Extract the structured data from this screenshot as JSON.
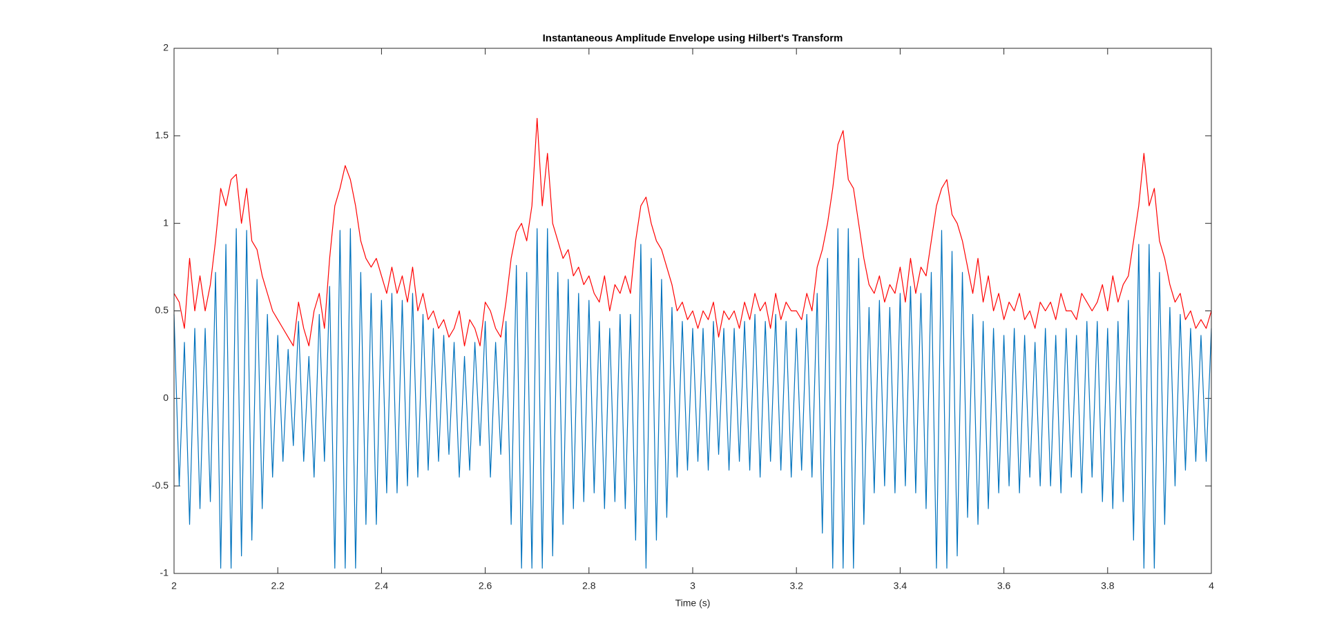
{
  "chart_data": {
    "type": "line",
    "title": "Instantaneous Amplitude Envelope using Hilbert's Transform",
    "x_label": "Time (s)",
    "x": [
      2,
      2.01,
      2.02,
      2.03,
      2.04,
      2.05,
      2.06,
      2.07,
      2.08,
      2.09,
      2.1,
      2.11,
      2.12,
      2.13,
      2.14,
      2.15,
      2.16,
      2.17,
      2.18,
      2.19,
      2.2,
      2.21,
      2.22,
      2.23,
      2.24,
      2.25,
      2.26,
      2.27,
      2.28,
      2.29,
      2.3,
      2.31,
      2.32,
      2.33,
      2.34,
      2.35,
      2.36,
      2.37,
      2.38,
      2.39,
      2.4,
      2.41,
      2.42,
      2.43,
      2.44,
      2.45,
      2.46,
      2.47,
      2.48,
      2.49,
      2.5,
      2.51,
      2.52,
      2.53,
      2.54,
      2.55,
      2.56,
      2.57,
      2.58,
      2.59,
      2.6,
      2.61,
      2.62,
      2.63,
      2.64,
      2.65,
      2.66,
      2.67,
      2.68,
      2.69,
      2.7,
      2.71,
      2.72,
      2.73,
      2.74,
      2.75,
      2.76,
      2.77,
      2.78,
      2.79,
      2.8,
      2.81,
      2.82,
      2.83,
      2.84,
      2.85,
      2.86,
      2.87,
      2.88,
      2.89,
      2.9,
      2.91,
      2.92,
      2.93,
      2.94,
      2.95,
      2.96,
      2.97,
      2.98,
      2.99,
      3,
      3.01,
      3.02,
      3.03,
      3.04,
      3.05,
      3.06,
      3.07,
      3.08,
      3.09,
      3.1,
      3.11,
      3.12,
      3.13,
      3.14,
      3.15,
      3.16,
      3.17,
      3.18,
      3.19,
      3.2,
      3.21,
      3.22,
      3.23,
      3.24,
      3.25,
      3.26,
      3.27,
      3.28,
      3.29,
      3.3,
      3.31,
      3.32,
      3.33,
      3.34,
      3.35,
      3.36,
      3.37,
      3.38,
      3.39,
      3.4,
      3.41,
      3.42,
      3.43,
      3.44,
      3.45,
      3.46,
      3.47,
      3.48,
      3.49,
      3.5,
      3.51,
      3.52,
      3.53,
      3.54,
      3.55,
      3.56,
      3.57,
      3.58,
      3.59,
      3.6,
      3.61,
      3.62,
      3.63,
      3.64,
      3.65,
      3.66,
      3.67,
      3.68,
      3.69,
      3.7,
      3.71,
      3.72,
      3.73,
      3.74,
      3.75,
      3.76,
      3.77,
      3.78,
      3.79,
      3.8,
      3.81,
      3.82,
      3.83,
      3.84,
      3.85,
      3.86,
      3.87,
      3.88,
      3.89,
      3.9,
      3.91,
      3.92,
      3.93,
      3.94,
      3.95,
      3.96,
      3.97,
      3.98,
      3.99,
      4
    ],
    "series": [
      {
        "color": "#0072BD",
        "values": [
          0.48,
          -0.5,
          0.32,
          -0.72,
          0.4,
          -0.63,
          0.4,
          -0.59,
          0.72,
          -0.97,
          0.88,
          -0.97,
          0.97,
          -0.9,
          0.96,
          -0.81,
          0.68,
          -0.63,
          0.48,
          -0.45,
          0.36,
          -0.36,
          0.28,
          -0.27,
          0.44,
          -0.36,
          0.24,
          -0.45,
          0.48,
          -0.36,
          0.64,
          -0.97,
          0.96,
          -0.97,
          0.97,
          -0.97,
          0.72,
          -0.72,
          0.6,
          -0.72,
          0.56,
          -0.54,
          0.6,
          -0.54,
          0.56,
          -0.5,
          0.6,
          -0.45,
          0.48,
          -0.41,
          0.4,
          -0.36,
          0.36,
          -0.32,
          0.32,
          -0.45,
          0.24,
          -0.41,
          0.32,
          -0.27,
          0.44,
          -0.45,
          0.32,
          -0.32,
          0.44,
          -0.72,
          0.76,
          -0.97,
          0.72,
          -0.97,
          0.97,
          -0.97,
          0.97,
          -0.9,
          0.72,
          -0.72,
          0.68,
          -0.63,
          0.6,
          -0.59,
          0.56,
          -0.54,
          0.44,
          -0.63,
          0.4,
          -0.59,
          0.48,
          -0.63,
          0.48,
          -0.81,
          0.88,
          -0.97,
          0.8,
          -0.81,
          0.68,
          -0.68,
          0.52,
          -0.45,
          0.44,
          -0.41,
          0.4,
          -0.36,
          0.4,
          -0.41,
          0.44,
          -0.32,
          0.4,
          -0.41,
          0.4,
          -0.36,
          0.44,
          -0.41,
          0.48,
          -0.45,
          0.44,
          -0.36,
          0.48,
          -0.41,
          0.44,
          -0.45,
          0.4,
          -0.41,
          0.48,
          -0.45,
          0.6,
          -0.77,
          0.8,
          -0.97,
          0.97,
          -0.97,
          0.97,
          -0.97,
          0.8,
          -0.72,
          0.52,
          -0.54,
          0.56,
          -0.5,
          0.52,
          -0.54,
          0.6,
          -0.5,
          0.64,
          -0.54,
          0.6,
          -0.63,
          0.72,
          -0.97,
          0.96,
          -0.97,
          0.84,
          -0.9,
          0.72,
          -0.68,
          0.48,
          -0.72,
          0.44,
          -0.63,
          0.4,
          -0.54,
          0.36,
          -0.5,
          0.4,
          -0.54,
          0.36,
          -0.45,
          0.32,
          -0.5,
          0.4,
          -0.5,
          0.36,
          -0.54,
          0.4,
          -0.45,
          0.36,
          -0.54,
          0.44,
          -0.45,
          0.44,
          -0.59,
          0.4,
          -0.63,
          0.44,
          -0.59,
          0.56,
          -0.81,
          0.88,
          -0.97,
          0.88,
          -0.97,
          0.72,
          -0.72,
          0.52,
          -0.5,
          0.48,
          -0.41,
          0.4,
          -0.36,
          0.36,
          -0.36,
          0.4
        ]
      },
      {
        "color": "#FF0000",
        "values": [
          0.6,
          0.55,
          0.4,
          0.8,
          0.5,
          0.7,
          0.5,
          0.65,
          0.9,
          1.2,
          1.1,
          1.25,
          1.28,
          1.0,
          1.2,
          0.9,
          0.85,
          0.7,
          0.6,
          0.5,
          0.45,
          0.4,
          0.35,
          0.3,
          0.55,
          0.4,
          0.3,
          0.5,
          0.6,
          0.4,
          0.8,
          1.1,
          1.2,
          1.33,
          1.25,
          1.1,
          0.9,
          0.8,
          0.75,
          0.8,
          0.7,
          0.6,
          0.75,
          0.6,
          0.7,
          0.55,
          0.75,
          0.5,
          0.6,
          0.45,
          0.5,
          0.4,
          0.45,
          0.35,
          0.4,
          0.5,
          0.3,
          0.45,
          0.4,
          0.3,
          0.55,
          0.5,
          0.4,
          0.35,
          0.55,
          0.8,
          0.95,
          1.0,
          0.9,
          1.1,
          1.6,
          1.1,
          1.4,
          1.0,
          0.9,
          0.8,
          0.85,
          0.7,
          0.75,
          0.65,
          0.7,
          0.6,
          0.55,
          0.7,
          0.5,
          0.65,
          0.6,
          0.7,
          0.6,
          0.9,
          1.1,
          1.15,
          1.0,
          0.9,
          0.85,
          0.75,
          0.65,
          0.5,
          0.55,
          0.45,
          0.5,
          0.4,
          0.5,
          0.45,
          0.55,
          0.35,
          0.5,
          0.45,
          0.5,
          0.4,
          0.55,
          0.45,
          0.6,
          0.5,
          0.55,
          0.4,
          0.6,
          0.45,
          0.55,
          0.5,
          0.5,
          0.45,
          0.6,
          0.5,
          0.75,
          0.85,
          1.0,
          1.2,
          1.45,
          1.53,
          1.25,
          1.2,
          1.0,
          0.8,
          0.65,
          0.6,
          0.7,
          0.55,
          0.65,
          0.6,
          0.75,
          0.55,
          0.8,
          0.6,
          0.75,
          0.7,
          0.9,
          1.1,
          1.2,
          1.25,
          1.05,
          1.0,
          0.9,
          0.75,
          0.6,
          0.8,
          0.55,
          0.7,
          0.5,
          0.6,
          0.45,
          0.55,
          0.5,
          0.6,
          0.45,
          0.5,
          0.4,
          0.55,
          0.5,
          0.55,
          0.45,
          0.6,
          0.5,
          0.5,
          0.45,
          0.6,
          0.55,
          0.5,
          0.55,
          0.65,
          0.5,
          0.7,
          0.55,
          0.65,
          0.7,
          0.9,
          1.1,
          1.4,
          1.1,
          1.2,
          0.9,
          0.8,
          0.65,
          0.55,
          0.6,
          0.45,
          0.5,
          0.4,
          0.45,
          0.4,
          0.5
        ]
      }
    ],
    "xlim": [
      2,
      4
    ],
    "xticks": [
      2,
      2.2,
      2.4,
      2.6,
      2.8,
      3,
      3.2,
      3.4,
      3.6,
      3.8,
      4
    ],
    "ylim": [
      -1,
      2
    ],
    "yticks": [
      -1,
      -0.5,
      0,
      0.5,
      1,
      1.5,
      2
    ],
    "grid": false
  }
}
